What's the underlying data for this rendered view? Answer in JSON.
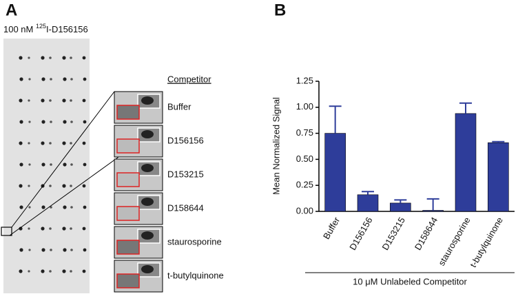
{
  "panel_a": {
    "letter": "A",
    "caption_prefix": "100 nM ",
    "caption_superscript": "125",
    "caption_suffix": "I-D156156",
    "competitor_heading": "Competitor",
    "competitors": [
      "Buffer",
      "D156156",
      "D153215",
      "D158644",
      "staurosporine",
      "t-butylquinone"
    ]
  },
  "chart_data": {
    "type": "bar",
    "panel_letter": "B",
    "y_label": "Mean Normalized Signal",
    "x_label": "10 μM Unlabeled Competitor",
    "categories": [
      "Buffer",
      "D156156",
      "D153215",
      "D158644",
      "staurosporine",
      "t-butylquinone"
    ],
    "values": [
      0.75,
      0.16,
      0.08,
      0.01,
      0.94,
      0.66
    ],
    "errors": [
      0.26,
      0.03,
      0.03,
      0.11,
      0.1,
      0.01
    ],
    "color": "#2e3d9a",
    "ylim": [
      0,
      1.25
    ],
    "yticks": [
      {
        "value": 0,
        "label": "0.00"
      },
      {
        "value": 0.25,
        "label": "0.25"
      },
      {
        "value": 0.5,
        "label": "0.50"
      },
      {
        "value": 0.75,
        "label": "0.75"
      },
      {
        "value": 1,
        "label": "1.00"
      },
      {
        "value": 1.25,
        "label": "1.25"
      }
    ]
  }
}
